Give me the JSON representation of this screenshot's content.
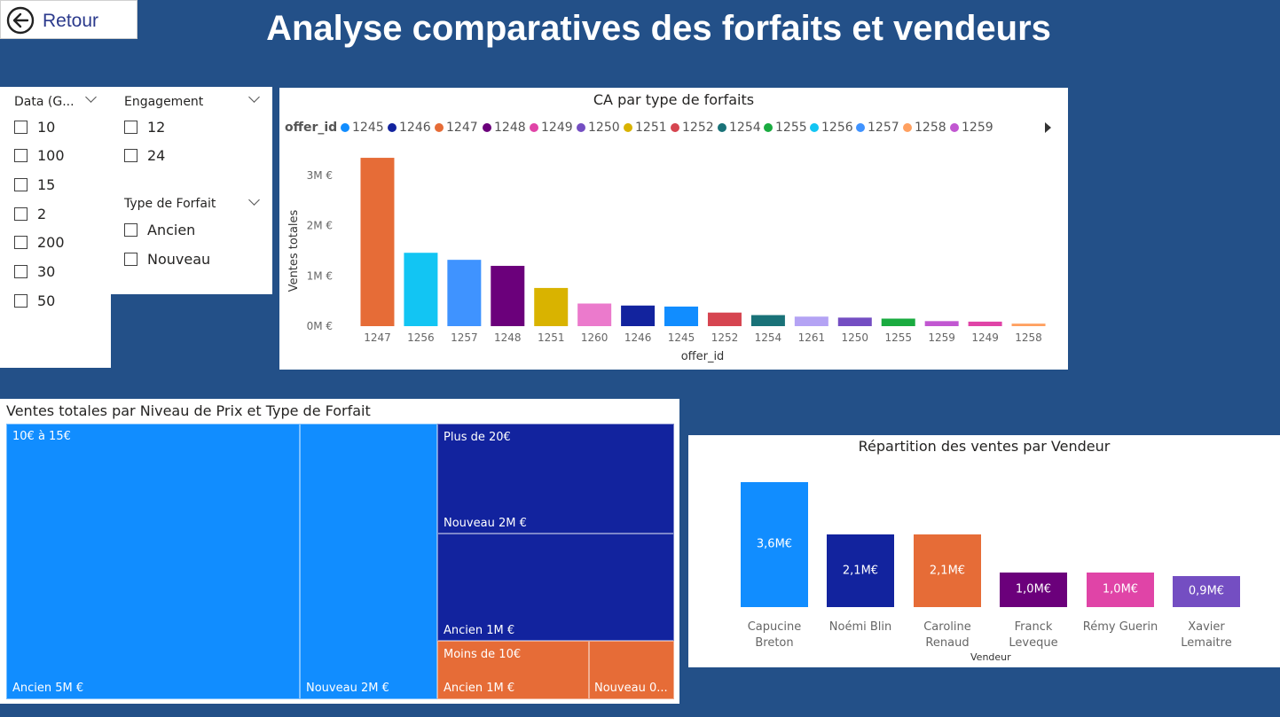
{
  "header": {
    "back_label": "Retour",
    "title": "Analyse comparatives des forfaits et vendeurs"
  },
  "slicers": {
    "data": {
      "header": "Data (G...",
      "options": [
        "10",
        "100",
        "15",
        "2",
        "200",
        "30",
        "50"
      ]
    },
    "engagement": {
      "header": "Engagement",
      "options": [
        "12",
        "24"
      ]
    },
    "type_forfait": {
      "header": "Type de Forfait",
      "options": [
        "Ancien",
        "Nouveau"
      ]
    }
  },
  "chart_data": [
    {
      "type": "bar",
      "title": "CA par type de forfaits",
      "xlabel": "offer_id",
      "ylabel": "Ventes totales",
      "ylim": [
        0,
        3.4
      ],
      "yticks": [
        0,
        1,
        2,
        3
      ],
      "ytick_labels": [
        "0M €",
        "1M €",
        "2M €",
        "3M €"
      ],
      "legend": {
        "title": "offer_id",
        "placement": "top-left",
        "entries": [
          "1245",
          "1246",
          "1247",
          "1248",
          "1249",
          "1250",
          "1251",
          "1252",
          "1254",
          "1255",
          "1256",
          "1257",
          "1258",
          "1259"
        ]
      },
      "categories": [
        "1247",
        "1256",
        "1257",
        "1248",
        "1251",
        "1260",
        "1246",
        "1245",
        "1252",
        "1254",
        "1261",
        "1250",
        "1255",
        "1259",
        "1249",
        "1258"
      ],
      "values": [
        3.35,
        1.46,
        1.32,
        1.2,
        0.76,
        0.45,
        0.41,
        0.39,
        0.27,
        0.22,
        0.19,
        0.17,
        0.15,
        0.1,
        0.09,
        0.05
      ],
      "colors": [
        "#E66C37",
        "#12C5F3",
        "#3F93FF",
        "#6B007B",
        "#D9B300",
        "#EB7ACC",
        "#12239E",
        "#118DFF",
        "#D64550",
        "#197278",
        "#B4A3F4",
        "#744EC2",
        "#1AAB40",
        "#C157D1",
        "#E044A7",
        "#FFA060"
      ]
    },
    {
      "type": "treemap",
      "title": "Ventes totales par Niveau de Prix et Type de Forfait",
      "groups": [
        {
          "name": "10€ à 15€",
          "color": "#118DFF",
          "children": [
            {
              "label": "Ancien 5M €",
              "value": 5
            },
            {
              "label": "Nouveau 2M €",
              "value": 2
            }
          ]
        },
        {
          "name": "Plus de 20€",
          "color": "#12239E",
          "children": [
            {
              "label": "Nouveau 2M €",
              "value": 2
            },
            {
              "label": "Ancien 1M €",
              "value": 1
            }
          ]
        },
        {
          "name": "Moins de 10€",
          "color": "#E66C37",
          "children": [
            {
              "label": "Ancien 1M €",
              "value": 1
            },
            {
              "label": "Nouveau 0...",
              "value": 0.5
            }
          ]
        }
      ]
    },
    {
      "type": "bar",
      "title": "Répartition des ventes par Vendeur",
      "xlabel": "Vendeur",
      "categories": [
        "Capucine Breton",
        "Noémi Blin",
        "Caroline Renaud",
        "Franck Leveque",
        "Rémy Guerin",
        "Xavier Lemaitre"
      ],
      "values": [
        3.6,
        2.1,
        2.1,
        1.0,
        1.0,
        0.9
      ],
      "labels": [
        "3,6M€",
        "2,1M€",
        "2,1M€",
        "1,0M€",
        "1,0M€",
        "0,9M€"
      ],
      "colors": [
        "#118DFF",
        "#12239E",
        "#E66C37",
        "#6B007B",
        "#E044A7",
        "#744EC2"
      ]
    }
  ]
}
